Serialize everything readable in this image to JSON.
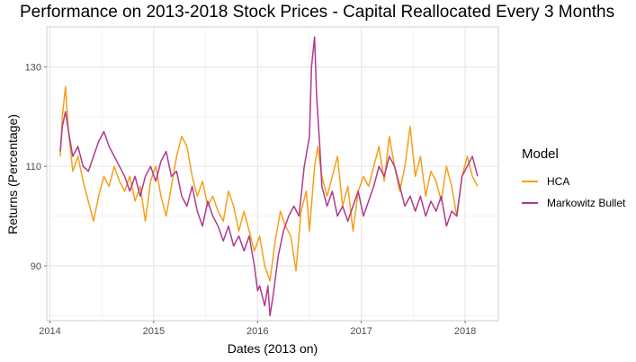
{
  "chart_data": {
    "type": "line",
    "title": "Performance on 2013-2018 Stock Prices - Capital Reallocated Every 3 Months",
    "xlabel": "Dates (2013 on)",
    "ylabel": "Returns (Percentage)",
    "xlim": [
      2013.97,
      2018.32
    ],
    "ylim": [
      79,
      138
    ],
    "x_ticks": [
      2014,
      2015,
      2016,
      2017,
      2018
    ],
    "x_tick_labels": [
      "2014",
      "2015",
      "2016",
      "2017",
      "2018"
    ],
    "y_ticks": [
      90,
      110,
      130
    ],
    "y_tick_labels": [
      "90",
      "110",
      "130"
    ],
    "grid": true,
    "legend_title": "Model",
    "legend_position": "right",
    "series": [
      {
        "name": "HCA",
        "color": "#F5A01A",
        "points": [
          [
            2014.1,
            112
          ],
          [
            2014.12,
            120
          ],
          [
            2014.15,
            126
          ],
          [
            2014.18,
            117
          ],
          [
            2014.22,
            109
          ],
          [
            2014.27,
            112
          ],
          [
            2014.32,
            107
          ],
          [
            2014.37,
            103
          ],
          [
            2014.42,
            99
          ],
          [
            2014.47,
            104
          ],
          [
            2014.52,
            108
          ],
          [
            2014.57,
            106
          ],
          [
            2014.62,
            110
          ],
          [
            2014.67,
            107
          ],
          [
            2014.72,
            105
          ],
          [
            2014.77,
            108
          ],
          [
            2014.82,
            103
          ],
          [
            2014.87,
            106
          ],
          [
            2014.92,
            99
          ],
          [
            2014.97,
            107
          ],
          [
            2015.02,
            110
          ],
          [
            2015.07,
            104
          ],
          [
            2015.12,
            100
          ],
          [
            2015.17,
            106
          ],
          [
            2015.22,
            112
          ],
          [
            2015.27,
            116
          ],
          [
            2015.32,
            114
          ],
          [
            2015.37,
            108
          ],
          [
            2015.42,
            104
          ],
          [
            2015.47,
            107
          ],
          [
            2015.52,
            102
          ],
          [
            2015.57,
            104
          ],
          [
            2015.62,
            101
          ],
          [
            2015.67,
            99
          ],
          [
            2015.72,
            105
          ],
          [
            2015.77,
            102
          ],
          [
            2015.82,
            97
          ],
          [
            2015.87,
            101
          ],
          [
            2015.92,
            97
          ],
          [
            2015.97,
            93
          ],
          [
            2016.02,
            96
          ],
          [
            2016.07,
            90
          ],
          [
            2016.12,
            87
          ],
          [
            2016.17,
            95
          ],
          [
            2016.22,
            101
          ],
          [
            2016.27,
            98
          ],
          [
            2016.32,
            96
          ],
          [
            2016.37,
            89
          ],
          [
            2016.42,
            101
          ],
          [
            2016.47,
            105
          ],
          [
            2016.5,
            97
          ],
          [
            2016.55,
            110
          ],
          [
            2016.58,
            114
          ],
          [
            2016.62,
            108
          ],
          [
            2016.67,
            104
          ],
          [
            2016.72,
            108
          ],
          [
            2016.77,
            112
          ],
          [
            2016.82,
            102
          ],
          [
            2016.87,
            106
          ],
          [
            2016.92,
            97
          ],
          [
            2016.97,
            105
          ],
          [
            2017.02,
            108
          ],
          [
            2017.07,
            106
          ],
          [
            2017.12,
            110
          ],
          [
            2017.17,
            114
          ],
          [
            2017.22,
            107
          ],
          [
            2017.27,
            116
          ],
          [
            2017.32,
            110
          ],
          [
            2017.37,
            105
          ],
          [
            2017.42,
            110
          ],
          [
            2017.47,
            118
          ],
          [
            2017.52,
            108
          ],
          [
            2017.57,
            112
          ],
          [
            2017.62,
            104
          ],
          [
            2017.67,
            109
          ],
          [
            2017.72,
            107
          ],
          [
            2017.77,
            103
          ],
          [
            2017.82,
            110
          ],
          [
            2017.87,
            106
          ],
          [
            2017.92,
            100
          ],
          [
            2017.97,
            108
          ],
          [
            2018.02,
            112
          ],
          [
            2018.07,
            108
          ],
          [
            2018.12,
            106
          ]
        ]
      },
      {
        "name": "Markowitz Bullet",
        "color": "#B03A8C",
        "points": [
          [
            2014.1,
            113
          ],
          [
            2014.12,
            118
          ],
          [
            2014.15,
            121
          ],
          [
            2014.18,
            117
          ],
          [
            2014.22,
            112
          ],
          [
            2014.27,
            114
          ],
          [
            2014.32,
            110
          ],
          [
            2014.37,
            109
          ],
          [
            2014.42,
            112
          ],
          [
            2014.47,
            115
          ],
          [
            2014.52,
            117
          ],
          [
            2014.57,
            114
          ],
          [
            2014.62,
            112
          ],
          [
            2014.67,
            110
          ],
          [
            2014.72,
            108
          ],
          [
            2014.77,
            105
          ],
          [
            2014.82,
            108
          ],
          [
            2014.87,
            104
          ],
          [
            2014.92,
            108
          ],
          [
            2014.97,
            110
          ],
          [
            2015.02,
            107
          ],
          [
            2015.07,
            111
          ],
          [
            2015.12,
            113
          ],
          [
            2015.17,
            108
          ],
          [
            2015.22,
            109
          ],
          [
            2015.27,
            104
          ],
          [
            2015.32,
            102
          ],
          [
            2015.37,
            106
          ],
          [
            2015.42,
            101
          ],
          [
            2015.47,
            98
          ],
          [
            2015.52,
            103
          ],
          [
            2015.57,
            100
          ],
          [
            2015.62,
            98
          ],
          [
            2015.67,
            95
          ],
          [
            2015.72,
            98
          ],
          [
            2015.77,
            94
          ],
          [
            2015.82,
            96
          ],
          [
            2015.87,
            93
          ],
          [
            2015.92,
            96
          ],
          [
            2015.97,
            90
          ],
          [
            2016.0,
            85
          ],
          [
            2016.02,
            86
          ],
          [
            2016.07,
            82
          ],
          [
            2016.1,
            86
          ],
          [
            2016.12,
            80
          ],
          [
            2016.15,
            84
          ],
          [
            2016.2,
            92
          ],
          [
            2016.25,
            97
          ],
          [
            2016.3,
            100
          ],
          [
            2016.35,
            102
          ],
          [
            2016.4,
            100
          ],
          [
            2016.45,
            110
          ],
          [
            2016.5,
            116
          ],
          [
            2016.52,
            130
          ],
          [
            2016.55,
            136
          ],
          [
            2016.57,
            124
          ],
          [
            2016.6,
            114
          ],
          [
            2016.62,
            106
          ],
          [
            2016.67,
            102
          ],
          [
            2016.72,
            105
          ],
          [
            2016.77,
            100
          ],
          [
            2016.82,
            102
          ],
          [
            2016.87,
            99
          ],
          [
            2016.92,
            102
          ],
          [
            2016.97,
            105
          ],
          [
            2017.02,
            100
          ],
          [
            2017.07,
            103
          ],
          [
            2017.12,
            106
          ],
          [
            2017.17,
            110
          ],
          [
            2017.22,
            108
          ],
          [
            2017.27,
            112
          ],
          [
            2017.32,
            110
          ],
          [
            2017.37,
            106
          ],
          [
            2017.42,
            102
          ],
          [
            2017.47,
            104
          ],
          [
            2017.52,
            101
          ],
          [
            2017.57,
            104
          ],
          [
            2017.62,
            100
          ],
          [
            2017.67,
            103
          ],
          [
            2017.72,
            101
          ],
          [
            2017.77,
            104
          ],
          [
            2017.82,
            98
          ],
          [
            2017.87,
            101
          ],
          [
            2017.92,
            100
          ],
          [
            2017.97,
            108
          ],
          [
            2018.02,
            110
          ],
          [
            2018.07,
            112
          ],
          [
            2018.12,
            108
          ]
        ]
      }
    ]
  }
}
